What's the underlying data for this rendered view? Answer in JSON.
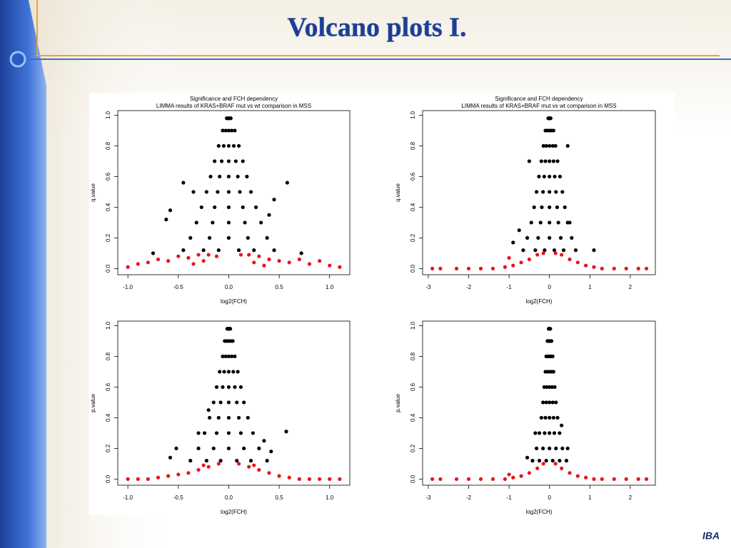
{
  "slide_title": "Volcano plots I.",
  "logo": "IBA",
  "chart_data": [
    {
      "type": "scatter",
      "title": "Significance and FCH dependency",
      "subtitle": "LIMMA results of KRAS+BRAF mut vs wt comparison in MSS",
      "xlabel": "log2(FCH)",
      "ylabel": "q.value",
      "xlim": [
        -1.1,
        1.2
      ],
      "ylim": [
        -0.04,
        1.03
      ],
      "xticks": [
        {
          "value": -1,
          "label": "-1.0"
        },
        {
          "value": -0.5,
          "label": "-0.5"
        },
        {
          "value": 0,
          "label": "0.0"
        },
        {
          "value": 0.5,
          "label": "0.5"
        },
        {
          "value": 1,
          "label": "1.0"
        }
      ],
      "yticks": [
        {
          "value": 0,
          "label": "0.0"
        },
        {
          "value": 0.2,
          "label": "0.2"
        },
        {
          "value": 0.4,
          "label": "0.4"
        },
        {
          "value": 0.6,
          "label": "0.6"
        },
        {
          "value": 0.8,
          "label": "0.8"
        },
        {
          "value": 1,
          "label": "1.0"
        }
      ],
      "series": [
        {
          "color": "#000000",
          "x": [
            -0.02,
            -0.01,
            0,
            0.01,
            0.02,
            -0.06,
            -0.03,
            0,
            0.03,
            0.06,
            -0.1,
            -0.05,
            0,
            0.05,
            0.1,
            -0.14,
            -0.07,
            0,
            0.07,
            0.14,
            -0.18,
            -0.09,
            0,
            0.09,
            0.18,
            -0.22,
            -0.11,
            0,
            0.11,
            0.22,
            -0.27,
            -0.14,
            0,
            0.14,
            0.27,
            -0.32,
            -0.16,
            0,
            0.16,
            0.32,
            -0.38,
            -0.19,
            0,
            0.19,
            0.38,
            -0.45,
            -0.25,
            -0.1,
            0.1,
            0.25,
            -0.75,
            -0.58,
            -0.62,
            -0.45,
            0.45,
            0.58,
            0.72,
            -0.35,
            0.4,
            0.45
          ],
          "values": [
            0.98,
            0.98,
            0.98,
            0.98,
            0.98,
            0.9,
            0.9,
            0.9,
            0.9,
            0.9,
            0.8,
            0.8,
            0.8,
            0.8,
            0.8,
            0.7,
            0.7,
            0.7,
            0.7,
            0.7,
            0.6,
            0.6,
            0.6,
            0.6,
            0.6,
            0.5,
            0.5,
            0.5,
            0.5,
            0.5,
            0.4,
            0.4,
            0.4,
            0.4,
            0.4,
            0.3,
            0.3,
            0.3,
            0.3,
            0.3,
            0.2,
            0.2,
            0.2,
            0.2,
            0.2,
            0.12,
            0.12,
            0.12,
            0.12,
            0.12,
            0.1,
            0.38,
            0.32,
            0.56,
            0.45,
            0.56,
            0.1,
            0.5,
            0.35,
            0.12
          ]
        },
        {
          "color": "#e8141b",
          "x": [
            -1.0,
            -0.9,
            -0.8,
            -0.7,
            -0.6,
            -0.5,
            -0.4,
            -0.3,
            -0.2,
            -0.12,
            0.12,
            0.2,
            0.3,
            0.4,
            0.5,
            0.6,
            0.7,
            0.8,
            0.9,
            1.0,
            1.1,
            -0.35,
            -0.25,
            0.25,
            0.35
          ],
          "values": [
            0.01,
            0.03,
            0.04,
            0.06,
            0.05,
            0.08,
            0.07,
            0.09,
            0.09,
            0.08,
            0.09,
            0.09,
            0.08,
            0.06,
            0.05,
            0.04,
            0.06,
            0.03,
            0.05,
            0.02,
            0.01,
            0.03,
            0.05,
            0.04,
            0.02
          ]
        }
      ]
    },
    {
      "type": "scatter",
      "title": "Significance and FCH dependency",
      "subtitle": "LIMMA results of KRAS+BRAF mut vs wt comparison in MSS",
      "xlabel": "log2(FCH)",
      "ylabel": "q.value",
      "xlim": [
        -3.14,
        2.62
      ],
      "ylim": [
        -0.04,
        1.03
      ],
      "xticks": [
        -3,
        -2,
        -1,
        0,
        1,
        2
      ],
      "yticks": [
        {
          "value": 0,
          "label": "0.0"
        },
        {
          "value": 0.2,
          "label": "0.2"
        },
        {
          "value": 0.4,
          "label": "0.4"
        },
        {
          "value": 0.6,
          "label": "0.6"
        },
        {
          "value": 0.8,
          "label": "0.8"
        },
        {
          "value": 1,
          "label": "1.0"
        }
      ],
      "series": [
        {
          "color": "#000000",
          "x": [
            -0.03,
            -0.015,
            0,
            0.015,
            0.03,
            -0.1,
            -0.05,
            0,
            0.05,
            0.1,
            -0.15,
            -0.08,
            0,
            0.08,
            0.15,
            -0.2,
            -0.1,
            0,
            0.1,
            0.2,
            -0.26,
            -0.13,
            0,
            0.13,
            0.26,
            -0.32,
            -0.16,
            0,
            0.16,
            0.32,
            -0.38,
            -0.19,
            0,
            0.19,
            0.38,
            -0.45,
            -0.22,
            0,
            0.22,
            0.45,
            -0.55,
            -0.28,
            0,
            0.28,
            0.55,
            -0.65,
            -0.35,
            -0.12,
            0.12,
            0.35,
            0.65,
            -0.9,
            -0.75,
            0.5,
            1.1,
            0.45,
            -0.5
          ],
          "values": [
            0.98,
            0.98,
            0.98,
            0.98,
            0.98,
            0.9,
            0.9,
            0.9,
            0.9,
            0.9,
            0.8,
            0.8,
            0.8,
            0.8,
            0.8,
            0.7,
            0.7,
            0.7,
            0.7,
            0.7,
            0.6,
            0.6,
            0.6,
            0.6,
            0.6,
            0.5,
            0.5,
            0.5,
            0.5,
            0.5,
            0.4,
            0.4,
            0.4,
            0.4,
            0.4,
            0.3,
            0.3,
            0.3,
            0.3,
            0.3,
            0.2,
            0.2,
            0.2,
            0.2,
            0.2,
            0.12,
            0.12,
            0.12,
            0.12,
            0.12,
            0.12,
            0.17,
            0.25,
            0.3,
            0.12,
            0.8,
            0.7
          ]
        },
        {
          "color": "#e8141b",
          "x": [
            -2.9,
            -2.7,
            -2.3,
            -2.0,
            -1.7,
            -1.4,
            -1.1,
            -0.9,
            -0.7,
            -0.5,
            -0.3,
            -0.15,
            0.15,
            0.3,
            0.5,
            0.7,
            0.9,
            1.1,
            1.3,
            1.6,
            1.9,
            2.2,
            2.4,
            -1.0
          ],
          "values": [
            0,
            0,
            0,
            0,
            0,
            0,
            0.01,
            0.02,
            0.04,
            0.06,
            0.09,
            0.1,
            0.1,
            0.09,
            0.06,
            0.04,
            0.02,
            0.01,
            0,
            0,
            0,
            0,
            0,
            0.07
          ]
        }
      ]
    },
    {
      "type": "scatter",
      "xlabel": "log2(FCH)",
      "ylabel": "p.value",
      "xlim": [
        -1.1,
        1.2
      ],
      "ylim": [
        -0.04,
        1.03
      ],
      "xticks": [
        {
          "value": -1,
          "label": "-1.0"
        },
        {
          "value": -0.5,
          "label": "-0.5"
        },
        {
          "value": 0,
          "label": "0.0"
        },
        {
          "value": 0.5,
          "label": "0.5"
        },
        {
          "value": 1,
          "label": "1.0"
        }
      ],
      "yticks": [
        {
          "value": 0,
          "label": "0.0"
        },
        {
          "value": 0.2,
          "label": "0.2"
        },
        {
          "value": 0.4,
          "label": "0.4"
        },
        {
          "value": 0.6,
          "label": "0.6"
        },
        {
          "value": 0.8,
          "label": "0.8"
        },
        {
          "value": 1,
          "label": "1.0"
        }
      ],
      "series": [
        {
          "color": "#000000",
          "x": [
            -0.015,
            -0.008,
            0,
            0.008,
            0.015,
            -0.04,
            -0.02,
            0,
            0.02,
            0.04,
            -0.06,
            -0.03,
            0,
            0.03,
            0.06,
            -0.09,
            -0.045,
            0,
            0.045,
            0.09,
            -0.12,
            -0.06,
            0,
            0.06,
            0.12,
            -0.15,
            -0.08,
            0,
            0.08,
            0.15,
            -0.19,
            -0.1,
            0,
            0.1,
            0.19,
            -0.24,
            -0.12,
            0,
            0.12,
            0.24,
            -0.3,
            -0.15,
            0,
            0.15,
            0.3,
            -0.38,
            -0.22,
            -0.08,
            0.08,
            0.22,
            0.38,
            -0.58,
            -0.52,
            0.57,
            0.42,
            -0.3,
            0.35,
            -0.2
          ],
          "values": [
            0.98,
            0.98,
            0.98,
            0.98,
            0.98,
            0.9,
            0.9,
            0.9,
            0.9,
            0.9,
            0.8,
            0.8,
            0.8,
            0.8,
            0.8,
            0.7,
            0.7,
            0.7,
            0.7,
            0.7,
            0.6,
            0.6,
            0.6,
            0.6,
            0.6,
            0.5,
            0.5,
            0.5,
            0.5,
            0.5,
            0.4,
            0.4,
            0.4,
            0.4,
            0.4,
            0.3,
            0.3,
            0.3,
            0.3,
            0.3,
            0.2,
            0.2,
            0.2,
            0.2,
            0.2,
            0.12,
            0.12,
            0.12,
            0.12,
            0.12,
            0.12,
            0.14,
            0.2,
            0.31,
            0.18,
            0.3,
            0.25,
            0.45
          ]
        },
        {
          "color": "#e8141b",
          "x": [
            -1.0,
            -0.9,
            -0.8,
            -0.7,
            -0.6,
            -0.5,
            -0.4,
            -0.3,
            -0.2,
            -0.1,
            0.1,
            0.2,
            0.3,
            0.4,
            0.5,
            0.6,
            0.7,
            0.8,
            0.9,
            1.0,
            1.1,
            -0.25,
            0.25
          ],
          "values": [
            0,
            0,
            0,
            0.01,
            0.02,
            0.03,
            0.04,
            0.06,
            0.08,
            0.1,
            0.1,
            0.08,
            0.06,
            0.04,
            0.02,
            0.01,
            0,
            0,
            0,
            0,
            0,
            0.09,
            0.09
          ]
        }
      ]
    },
    {
      "type": "scatter",
      "xlabel": "log2(FCH)",
      "ylabel": "p.value",
      "xlim": [
        -3.14,
        2.62
      ],
      "ylim": [
        -0.04,
        1.03
      ],
      "xticks": [
        -3,
        -2,
        -1,
        0,
        1,
        2
      ],
      "yticks": [
        {
          "value": 0,
          "label": "0.0"
        },
        {
          "value": 0.2,
          "label": "0.2"
        },
        {
          "value": 0.4,
          "label": "0.4"
        },
        {
          "value": 0.6,
          "label": "0.6"
        },
        {
          "value": 0.8,
          "label": "0.8"
        },
        {
          "value": 1,
          "label": "1.0"
        }
      ],
      "series": [
        {
          "color": "#000000",
          "x": [
            -0.02,
            -0.01,
            0,
            0.01,
            0.02,
            -0.05,
            -0.025,
            0,
            0.025,
            0.05,
            -0.08,
            -0.04,
            0,
            0.04,
            0.08,
            -0.1,
            -0.05,
            0,
            0.05,
            0.1,
            -0.13,
            -0.065,
            0,
            0.065,
            0.13,
            -0.16,
            -0.08,
            0,
            0.08,
            0.16,
            -0.2,
            -0.1,
            0,
            0.1,
            0.2,
            -0.25,
            -0.12,
            0,
            0.12,
            0.25,
            -0.32,
            -0.16,
            0,
            0.16,
            0.32,
            -0.42,
            -0.25,
            -0.08,
            0.08,
            0.25,
            0.42,
            -0.55,
            0.45,
            -0.35,
            0.3
          ],
          "values": [
            0.98,
            0.98,
            0.98,
            0.98,
            0.98,
            0.9,
            0.9,
            0.9,
            0.9,
            0.9,
            0.8,
            0.8,
            0.8,
            0.8,
            0.8,
            0.7,
            0.7,
            0.7,
            0.7,
            0.7,
            0.6,
            0.6,
            0.6,
            0.6,
            0.6,
            0.5,
            0.5,
            0.5,
            0.5,
            0.5,
            0.4,
            0.4,
            0.4,
            0.4,
            0.4,
            0.3,
            0.3,
            0.3,
            0.3,
            0.3,
            0.2,
            0.2,
            0.2,
            0.2,
            0.2,
            0.12,
            0.12,
            0.12,
            0.12,
            0.12,
            0.12,
            0.14,
            0.2,
            0.3,
            0.35
          ]
        },
        {
          "color": "#e8141b",
          "x": [
            -2.9,
            -2.7,
            -2.3,
            -2.0,
            -1.7,
            -1.4,
            -1.1,
            -0.9,
            -0.7,
            -0.5,
            -0.3,
            -0.15,
            0.15,
            0.3,
            0.5,
            0.7,
            0.9,
            1.1,
            1.3,
            1.6,
            1.9,
            2.2,
            2.4,
            -1.0
          ],
          "values": [
            0,
            0,
            0,
            0,
            0,
            0,
            0,
            0.01,
            0.02,
            0.04,
            0.07,
            0.1,
            0.1,
            0.07,
            0.04,
            0.02,
            0.01,
            0,
            0,
            0,
            0,
            0,
            0,
            0.03
          ]
        }
      ]
    }
  ]
}
